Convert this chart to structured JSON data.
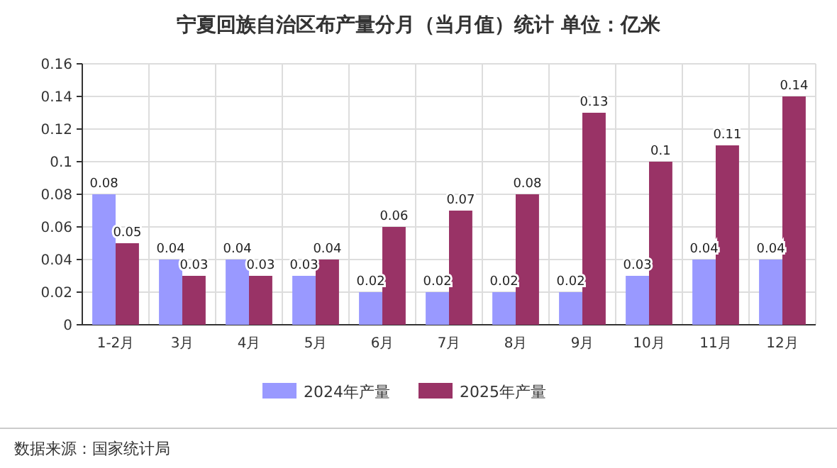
{
  "chart_data": {
    "type": "bar",
    "title": "宁夏回族自治区布产量分月（当月值）统计  单位：亿米",
    "categories": [
      "1-2月",
      "3月",
      "4月",
      "5月",
      "6月",
      "7月",
      "8月",
      "9月",
      "10月",
      "11月",
      "12月"
    ],
    "series": [
      {
        "name": "2024年产量",
        "color": "#9999ff",
        "values": [
          0.08,
          0.04,
          0.04,
          0.03,
          0.02,
          0.02,
          0.02,
          0.02,
          0.03,
          0.04,
          0.04
        ]
      },
      {
        "name": "2025年产量",
        "color": "#993366",
        "values": [
          0.05,
          0.03,
          0.03,
          0.04,
          0.06,
          0.07,
          0.08,
          0.13,
          0.1,
          0.11,
          0.14
        ]
      }
    ],
    "ylim": [
      0,
      0.16
    ],
    "yticks": [
      0,
      0.02,
      0.04,
      0.06,
      0.08,
      0.1,
      0.12,
      0.14,
      0.16
    ],
    "grid": true,
    "legend": "bottom",
    "data_labels": true,
    "annotations": [
      "数据来源：国家统计局"
    ]
  }
}
